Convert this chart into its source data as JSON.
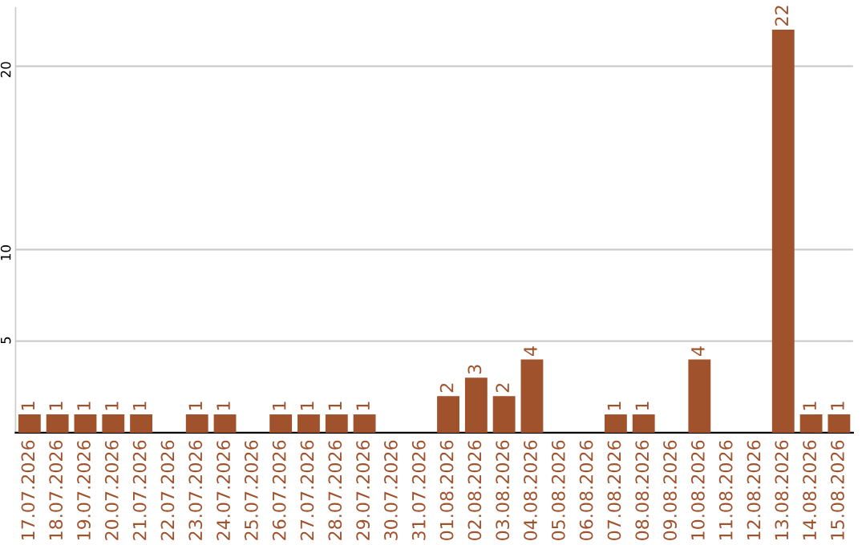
{
  "chart_data": {
    "type": "bar",
    "categories": [
      "17.07.2026",
      "18.07.2026",
      "19.07.2026",
      "20.07.2026",
      "21.07.2026",
      "22.07.2026",
      "23.07.2026",
      "24.07.2026",
      "25.07.2026",
      "26.07.2026",
      "27.07.2026",
      "28.07.2026",
      "29.07.2026",
      "30.07.2026",
      "31.07.2026",
      "01.08.2026",
      "02.08.2026",
      "03.08.2026",
      "04.08.2026",
      "05.08.2026",
      "06.08.2026",
      "07.08.2026",
      "08.08.2026",
      "09.08.2026",
      "10.08.2026",
      "11.08.2026",
      "12.08.2026",
      "13.08.2026",
      "14.08.2026",
      "15.08.2026"
    ],
    "values": [
      1,
      1,
      1,
      1,
      1,
      null,
      1,
      1,
      null,
      1,
      1,
      1,
      1,
      null,
      null,
      2,
      3,
      2,
      4,
      null,
      null,
      1,
      1,
      null,
      4,
      null,
      null,
      22,
      1,
      1
    ],
    "color": "#a0522d",
    "ylim": [
      0,
      23.2
    ],
    "yticks": [
      5,
      10,
      20
    ],
    "grid": "y",
    "data_labels": true
  }
}
